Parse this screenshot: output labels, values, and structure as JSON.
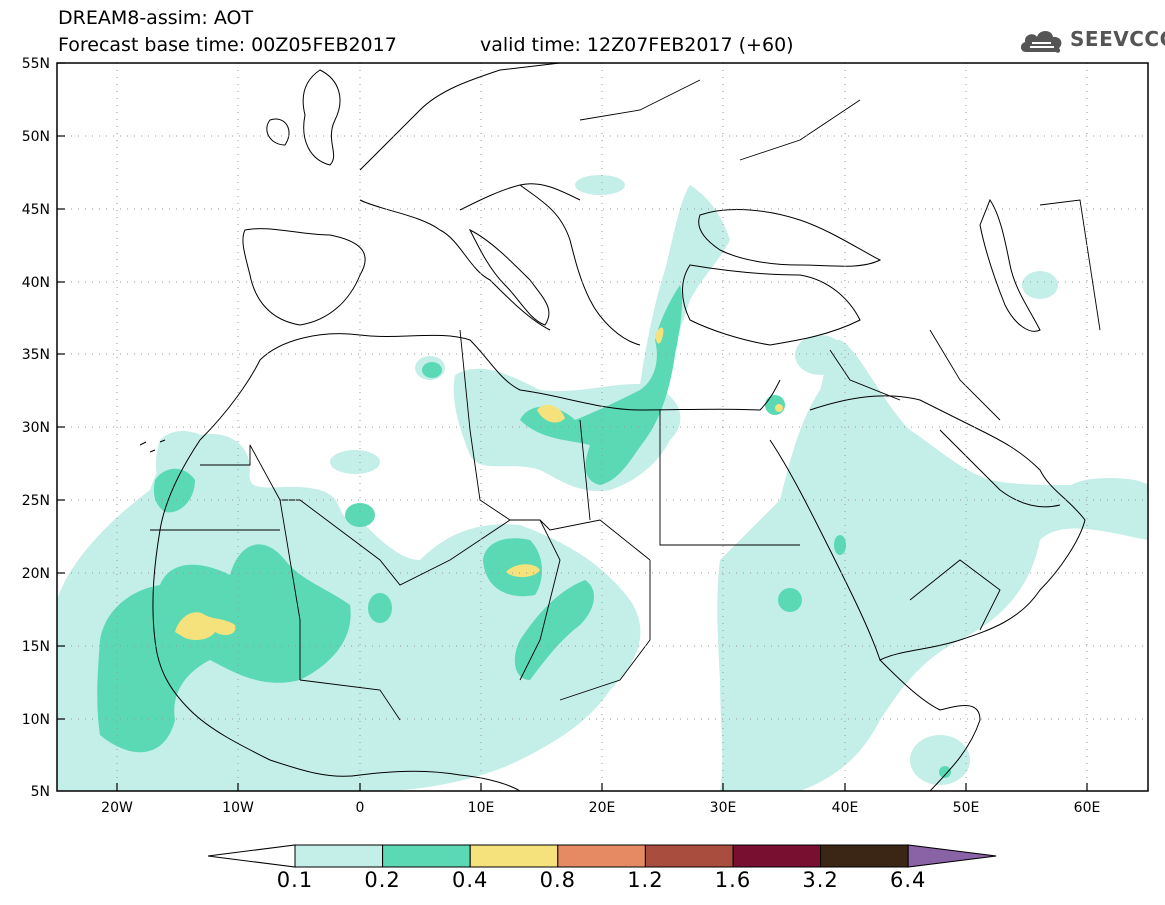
{
  "header": {
    "line1": "DREAM8-assim: AOT",
    "line2": "Forecast base time: 00Z05FEB2017",
    "valid": "valid time: 12Z07FEB2017 (+60)"
  },
  "logo": {
    "text": "SEEVCCC",
    "icon": "cloud-icon"
  },
  "map": {
    "variable": "AOT",
    "lat_labels": [
      "55N",
      "50N",
      "45N",
      "40N",
      "35N",
      "30N",
      "25N",
      "20N",
      "15N",
      "10N",
      "5N"
    ],
    "lon_labels": [
      "20W",
      "10W",
      "0",
      "10E",
      "20E",
      "30E",
      "40E",
      "50E",
      "60E"
    ],
    "extent": {
      "lon": [
        -25,
        65
      ],
      "lat": [
        5,
        55
      ]
    }
  },
  "colorbar": {
    "levels": [
      "0.1",
      "0.2",
      "0.4",
      "0.8",
      "1.2",
      "1.6",
      "3.2",
      "6.4"
    ],
    "colors": [
      "#ffffff",
      "#c4eee8",
      "#5ad9b4",
      "#f5e27c",
      "#e58a63",
      "#a94d3e",
      "#780f30",
      "#3b2616",
      "#8a63a6"
    ]
  },
  "colors": {
    "aot_0_1": "#c4eee8",
    "aot_0_2": "#5ad9b4",
    "aot_0_4": "#f5e27c"
  }
}
